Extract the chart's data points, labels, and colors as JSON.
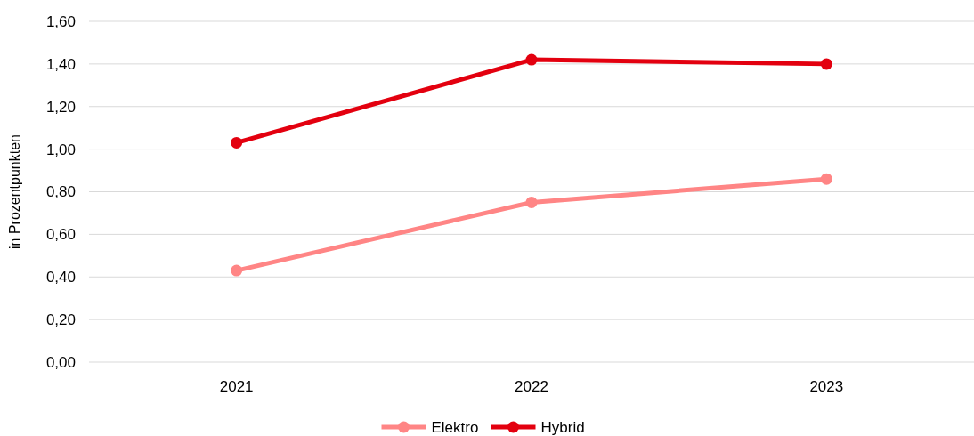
{
  "chart_data": {
    "type": "line",
    "ylabel": "in Prozentpunkten",
    "categories": [
      "2021",
      "2022",
      "2023"
    ],
    "series": [
      {
        "name": "Elektro",
        "color": "#ff8585",
        "values": [
          0.43,
          0.75,
          0.86
        ]
      },
      {
        "name": "Hybrid",
        "color": "#e3000f",
        "values": [
          1.03,
          1.42,
          1.4
        ]
      }
    ],
    "ylim": [
      0,
      1.6
    ],
    "yticks": [
      {
        "value": 0,
        "label": "0,00"
      },
      {
        "value": 0.2,
        "label": "0,20"
      },
      {
        "value": 0.4,
        "label": "0,40"
      },
      {
        "value": 0.6,
        "label": "0,60"
      },
      {
        "value": 0.8,
        "label": "0,80"
      },
      {
        "value": 1,
        "label": "1,00"
      },
      {
        "value": 1.2,
        "label": "1,20"
      },
      {
        "value": 1.4,
        "label": "1,40"
      },
      {
        "value": 1.6,
        "label": "1,60"
      }
    ],
    "grid": "y",
    "legend": "bottom",
    "marker": "circle",
    "line_style": "solid"
  }
}
